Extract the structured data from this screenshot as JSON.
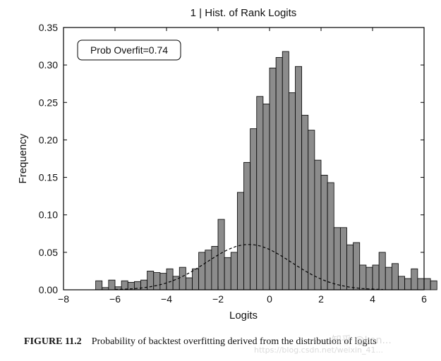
{
  "chart_data": {
    "type": "bar",
    "title": "1 | Hist. of Rank Logits",
    "xlabel": "Logits",
    "ylabel": "Frequency",
    "xlim": [
      -8,
      6
    ],
    "ylim": [
      0,
      0.35
    ],
    "xticks": [
      "−8",
      "−6",
      "−4",
      "−2",
      "0",
      "2",
      "4",
      "6"
    ],
    "xtick_values": [
      -8,
      -6,
      -4,
      -2,
      0,
      2,
      4,
      6
    ],
    "yticks": [
      "0.00",
      "0.05",
      "0.10",
      "0.15",
      "0.20",
      "0.25",
      "0.30",
      "0.35"
    ],
    "ytick_values": [
      0,
      0.05,
      0.1,
      0.15,
      0.2,
      0.25,
      0.3,
      0.35
    ],
    "annotation": "Prob Overfit=0.74",
    "bar_color": "#8c8c8c",
    "bins": {
      "x_start": -6.75,
      "width": 0.25,
      "values": [
        0.012,
        0.003,
        0.013,
        0.004,
        0.012,
        0.01,
        0.011,
        0.013,
        0.025,
        0.023,
        0.022,
        0.028,
        0.018,
        0.03,
        0.016,
        0.028,
        0.05,
        0.053,
        0.058,
        0.094,
        0.043,
        0.05,
        0.13,
        0.17,
        0.215,
        0.258,
        0.248,
        0.296,
        0.31,
        0.318,
        0.263,
        0.298,
        0.233,
        0.213,
        0.173,
        0.153,
        0.143,
        0.083,
        0.083,
        0.06,
        0.063,
        0.033,
        0.03,
        0.033,
        0.05,
        0.03,
        0.035,
        0.018,
        0.015,
        0.028,
        0.015,
        0.015,
        0.012,
        0.0,
        0.0,
        0.0,
        0.0,
        0.003,
        0.0,
        0.0,
        0.0,
        0.002,
        0.002
      ]
    },
    "fit_curve": {
      "style": "dashed",
      "mean": -0.8,
      "std": 1.65,
      "bin_width": 0.25
    }
  },
  "caption": {
    "number": "FIGURE 11.2",
    "text": "Probability of backtest overfitting derived from the distribution of logits"
  },
  "watermark": {
    "text": "知乎 @Lon...",
    "sub": "https://blog.csdn.net/weixin_41..."
  }
}
